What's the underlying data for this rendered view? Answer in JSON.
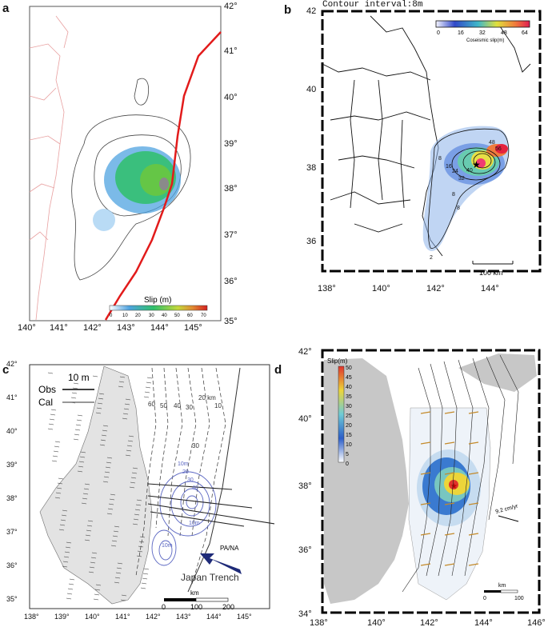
{
  "panels": {
    "a": {
      "label": "a",
      "lon_ticks": [
        "140°",
        "141°",
        "142°",
        "143°",
        "144°",
        "145°"
      ],
      "lat_ticks": [
        "42°",
        "41°",
        "40°",
        "39°",
        "38°",
        "37°",
        "36°",
        "35°"
      ],
      "colorbar": {
        "title": "Slip (m)",
        "ticks": [
          "0",
          "10",
          "20",
          "30",
          "40",
          "50",
          "60",
          "70"
        ]
      }
    },
    "b": {
      "label": "b",
      "header": "Contour interval:8m",
      "lon_ticks": [
        "138°",
        "140°",
        "142°",
        "144°"
      ],
      "lat_ticks": [
        "42",
        "40",
        "38",
        "36"
      ],
      "colorbar": {
        "title": "Coseismic slip(m)",
        "ticks": [
          "0",
          "16",
          "32",
          "48",
          "64"
        ]
      },
      "contour_labels": [
        "8",
        "16",
        "24",
        "32",
        "40",
        "48",
        "56",
        "8",
        "8",
        "2"
      ],
      "scalebar": "100 km"
    },
    "c": {
      "label": "c",
      "lon_ticks": [
        "138°",
        "139°",
        "140°",
        "141°",
        "142°",
        "143°",
        "144°",
        "145°"
      ],
      "lat_ticks": [
        "42°",
        "41°",
        "40°",
        "39°",
        "38°",
        "37°",
        "36°",
        "35°"
      ],
      "legend": {
        "scale": "10 m",
        "obs": "Obs",
        "cal": "Cal"
      },
      "depth_labels": [
        "60",
        "50",
        "40",
        "30",
        "20 km",
        "10",
        "30"
      ],
      "slip_labels": [
        "10m",
        "20",
        "30",
        "40",
        "10m",
        "10m"
      ],
      "plate": "PA/NA",
      "trench": "Japan Trench",
      "scalebar": {
        "title": "km",
        "ticks": [
          "0",
          "100",
          "200"
        ]
      }
    },
    "d": {
      "label": "d",
      "lon_ticks": [
        "138°",
        "140°",
        "142°",
        "144°",
        "146°"
      ],
      "lat_ticks": [
        "42°",
        "40°",
        "38°",
        "36°",
        "34°"
      ],
      "colorbar": {
        "title": "Slip(m)",
        "ticks": [
          "50",
          "45",
          "40",
          "35",
          "30",
          "25",
          "20",
          "15",
          "10",
          "5",
          "0"
        ]
      },
      "velocity": "9.2 cm/yr",
      "scalebar": {
        "title": "km",
        "ticks": [
          "0",
          "100"
        ]
      }
    }
  }
}
